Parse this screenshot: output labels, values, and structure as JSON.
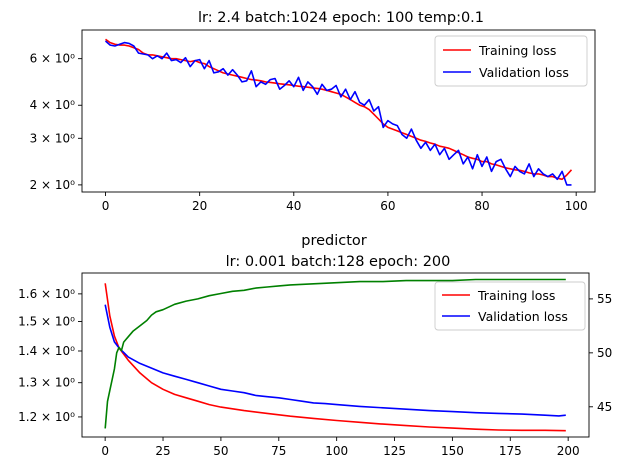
{
  "chart_data": [
    {
      "type": "line",
      "title": "lr: 2.4 batch:1024 epoch: 100 temp:0.1",
      "xlabel": "",
      "ylabel": "",
      "yscale": "log",
      "xlim": [
        -5,
        104
      ],
      "ylim": [
        1.88,
        7.7
      ],
      "xticks": [
        0,
        20,
        40,
        60,
        80,
        100
      ],
      "yticks": [
        {
          "value": 2,
          "label": "2 × 10⁰"
        },
        {
          "value": 3,
          "label": "3 × 10⁰"
        },
        {
          "value": 4,
          "label": "4 × 10⁰"
        },
        {
          "value": 6,
          "label": "6 × 10⁰"
        }
      ],
      "legend": {
        "placement": "top-right"
      },
      "series": [
        {
          "name": "Training loss",
          "color": "#ff0000",
          "axis": "left",
          "x_start": 0,
          "values": [
            7.1,
            6.9,
            6.8,
            6.75,
            6.75,
            6.7,
            6.6,
            6.5,
            6.3,
            6.2,
            6.2,
            6.15,
            6.1,
            6.05,
            6.0,
            6.0,
            5.95,
            5.9,
            5.85,
            5.9,
            5.8,
            5.75,
            5.6,
            5.5,
            5.4,
            5.3,
            5.25,
            5.2,
            5.15,
            5.1,
            5.05,
            5.0,
            4.98,
            4.95,
            4.9,
            4.88,
            4.85,
            4.82,
            4.8,
            4.78,
            4.75,
            4.72,
            4.7,
            4.68,
            4.65,
            4.63,
            4.6,
            4.55,
            4.5,
            4.45,
            4.4,
            4.3,
            4.2,
            4.1,
            4.0,
            3.95,
            3.85,
            3.7,
            3.55,
            3.4,
            3.3,
            3.25,
            3.2,
            3.15,
            3.1,
            3.05,
            3.0,
            2.95,
            2.92,
            2.88,
            2.85,
            2.8,
            2.78,
            2.75,
            2.7,
            2.65,
            2.6,
            2.55,
            2.52,
            2.5,
            2.45,
            2.45,
            2.4,
            2.38,
            2.35,
            2.32,
            2.3,
            2.28,
            2.27,
            2.25,
            2.22,
            2.2,
            2.2,
            2.18,
            2.15,
            2.15,
            2.12,
            2.1,
            2.18,
            2.28
          ]
        },
        {
          "name": "Validation loss",
          "color": "#0000ff",
          "axis": "left",
          "x_start": 0,
          "values": [
            7.0,
            6.75,
            6.7,
            6.8,
            6.9,
            6.85,
            6.7,
            6.3,
            6.25,
            6.2,
            6.0,
            6.15,
            6.0,
            6.3,
            5.9,
            5.95,
            5.8,
            6.05,
            5.6,
            5.9,
            5.95,
            5.5,
            5.9,
            5.3,
            5.35,
            5.5,
            5.2,
            5.45,
            5.2,
            4.9,
            4.95,
            5.4,
            4.7,
            4.9,
            4.8,
            5.0,
            5.05,
            4.6,
            4.75,
            4.95,
            4.7,
            5.1,
            4.55,
            4.9,
            4.7,
            4.4,
            4.8,
            4.55,
            4.6,
            4.75,
            4.3,
            4.6,
            4.2,
            4.5,
            4.1,
            4.0,
            4.2,
            3.8,
            3.95,
            3.3,
            3.5,
            3.4,
            3.35,
            3.1,
            3.0,
            3.25,
            2.95,
            2.75,
            2.9,
            2.7,
            2.85,
            2.6,
            2.75,
            2.5,
            2.6,
            2.7,
            2.4,
            2.55,
            2.3,
            2.6,
            2.35,
            2.55,
            2.25,
            2.45,
            2.5,
            2.3,
            2.15,
            2.35,
            2.25,
            2.2,
            2.4,
            2.15,
            2.3,
            2.2,
            2.15,
            2.2,
            2.1,
            2.25,
            2.0,
            2.0
          ]
        }
      ]
    },
    {
      "type": "line",
      "title": "predictor\nlr: 0.001 batch:128 epoch: 200",
      "xlabel": "",
      "ylabel": "",
      "yscale": "log",
      "xlim": [
        -10,
        209
      ],
      "ylim": [
        1.145,
        1.68
      ],
      "y2lim": [
        42.2,
        57.4
      ],
      "xticks": [
        0,
        25,
        50,
        75,
        100,
        125,
        150,
        175,
        200
      ],
      "yticks": [
        {
          "value": 1.2,
          "label": "1.2 × 10⁰"
        },
        {
          "value": 1.3,
          "label": "1.3 × 10⁰"
        },
        {
          "value": 1.4,
          "label": "1.4 × 10⁰"
        },
        {
          "value": 1.5,
          "label": "1.5 × 10⁰"
        },
        {
          "value": 1.6,
          "label": "1.6 × 10⁰"
        }
      ],
      "y2ticks": [
        45,
        50,
        55
      ],
      "legend": {
        "placement": "top-right"
      },
      "series": [
        {
          "name": "Training loss",
          "color": "#ff0000",
          "axis": "left",
          "points": [
            [
              0,
              1.64
            ],
            [
              2,
              1.52
            ],
            [
              4,
              1.45
            ],
            [
              6,
              1.41
            ],
            [
              8,
              1.39
            ],
            [
              10,
              1.37
            ],
            [
              15,
              1.33
            ],
            [
              20,
              1.3
            ],
            [
              25,
              1.28
            ],
            [
              30,
              1.265
            ],
            [
              35,
              1.255
            ],
            [
              40,
              1.245
            ],
            [
              45,
              1.235
            ],
            [
              50,
              1.228
            ],
            [
              60,
              1.218
            ],
            [
              70,
              1.21
            ],
            [
              80,
              1.202
            ],
            [
              90,
              1.196
            ],
            [
              100,
              1.19
            ],
            [
              110,
              1.185
            ],
            [
              120,
              1.18
            ],
            [
              130,
              1.176
            ],
            [
              140,
              1.172
            ],
            [
              150,
              1.169
            ],
            [
              160,
              1.166
            ],
            [
              170,
              1.164
            ],
            [
              180,
              1.163
            ],
            [
              190,
              1.163
            ],
            [
              199,
              1.162
            ]
          ]
        },
        {
          "name": "Validation loss",
          "color": "#0000ff",
          "axis": "left",
          "points": [
            [
              0,
              1.56
            ],
            [
              2,
              1.48
            ],
            [
              4,
              1.43
            ],
            [
              6,
              1.41
            ],
            [
              8,
              1.395
            ],
            [
              10,
              1.38
            ],
            [
              15,
              1.36
            ],
            [
              20,
              1.345
            ],
            [
              25,
              1.33
            ],
            [
              30,
              1.32
            ],
            [
              35,
              1.31
            ],
            [
              40,
              1.3
            ],
            [
              45,
              1.29
            ],
            [
              50,
              1.28
            ],
            [
              55,
              1.275
            ],
            [
              60,
              1.27
            ],
            [
              65,
              1.262
            ],
            [
              70,
              1.258
            ],
            [
              75,
              1.255
            ],
            [
              80,
              1.25
            ],
            [
              85,
              1.245
            ],
            [
              90,
              1.24
            ],
            [
              95,
              1.238
            ],
            [
              100,
              1.235
            ],
            [
              110,
              1.23
            ],
            [
              120,
              1.226
            ],
            [
              130,
              1.222
            ],
            [
              140,
              1.218
            ],
            [
              150,
              1.215
            ],
            [
              160,
              1.212
            ],
            [
              170,
              1.21
            ],
            [
              180,
              1.208
            ],
            [
              190,
              1.205
            ],
            [
              196,
              1.203
            ],
            [
              199,
              1.205
            ]
          ]
        },
        {
          "name": "",
          "color": "#008000",
          "axis": "right",
          "points": [
            [
              0,
              43.0
            ],
            [
              1,
              45.5
            ],
            [
              2,
              46.5
            ],
            [
              3,
              47.5
            ],
            [
              4,
              48.5
            ],
            [
              5,
              50.0
            ],
            [
              6,
              50.5
            ],
            [
              7,
              50.2
            ],
            [
              8,
              51.0
            ],
            [
              10,
              51.5
            ],
            [
              12,
              52.0
            ],
            [
              15,
              52.5
            ],
            [
              18,
              53.0
            ],
            [
              20,
              53.5
            ],
            [
              22,
              53.8
            ],
            [
              25,
              54.0
            ],
            [
              30,
              54.5
            ],
            [
              35,
              54.8
            ],
            [
              40,
              55.0
            ],
            [
              45,
              55.3
            ],
            [
              50,
              55.5
            ],
            [
              55,
              55.7
            ],
            [
              60,
              55.8
            ],
            [
              65,
              56.0
            ],
            [
              70,
              56.1
            ],
            [
              75,
              56.2
            ],
            [
              80,
              56.3
            ],
            [
              90,
              56.4
            ],
            [
              100,
              56.5
            ],
            [
              110,
              56.6
            ],
            [
              120,
              56.6
            ],
            [
              130,
              56.7
            ],
            [
              140,
              56.7
            ],
            [
              150,
              56.7
            ],
            [
              160,
              56.8
            ],
            [
              170,
              56.8
            ],
            [
              180,
              56.8
            ],
            [
              190,
              56.8
            ],
            [
              199,
              56.8
            ]
          ]
        }
      ]
    }
  ]
}
